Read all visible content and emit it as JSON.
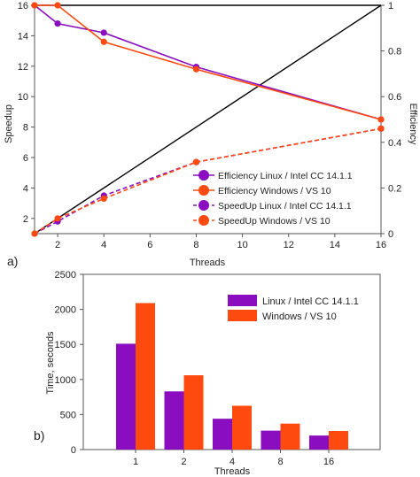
{
  "panel_a": {
    "label": "a)",
    "xlabel": "Threads",
    "ylabel_left": "Speedup",
    "ylabel_right": "Efficiency",
    "legend": [
      "Efficiency Linux / Intel CC 14.1.1",
      "Efficiency Windows / VS 10",
      "SpeedUp Linux / Intel CC 14.1.1",
      "SpeedUp Windows / VS 10"
    ]
  },
  "panel_b": {
    "label": "b)",
    "xlabel": "Threads",
    "ylabel": "Time, seconds",
    "legend": [
      "Linux / Intel CC 14.1.1",
      "Windows / VS 10"
    ]
  },
  "colors": {
    "linux": "#8a0dbf",
    "windows": "#ff4a0f",
    "ideal": "#000000"
  },
  "chart_data": [
    {
      "type": "line",
      "xlabel": "Threads",
      "ylabel": "Speedup",
      "ylabel_right": "Efficiency",
      "xlim": [
        1,
        16
      ],
      "ylim": [
        1,
        16
      ],
      "y2lim": [
        0,
        1.0
      ],
      "xticks": [
        2,
        4,
        6,
        8,
        10,
        12,
        14,
        16
      ],
      "yticks": [
        2,
        4,
        6,
        8,
        10,
        12,
        14,
        16
      ],
      "y2ticks": [
        0,
        0.2,
        0.4,
        0.6,
        0.8,
        1
      ],
      "grid": false,
      "legend_position": "lower-right",
      "series": [
        {
          "name": "Efficiency Linux / Intel CC 14.1.1",
          "axis": "right",
          "style": "solid",
          "x": [
            1,
            2,
            4,
            8,
            16
          ],
          "y": [
            1.0,
            0.92,
            0.88,
            0.73,
            0.5
          ]
        },
        {
          "name": "Efficiency Windows / VS 10",
          "axis": "right",
          "style": "solid",
          "x": [
            1,
            2,
            4,
            8,
            16
          ],
          "y": [
            1.0,
            1.0,
            0.84,
            0.72,
            0.5
          ]
        },
        {
          "name": "SpeedUp Linux / Intel CC 14.1.1",
          "axis": "left",
          "style": "dashed",
          "x": [
            1,
            2,
            4,
            8,
            16
          ],
          "y": [
            1.0,
            1.8,
            3.5,
            5.7,
            7.9
          ]
        },
        {
          "name": "SpeedUp Windows / VS 10",
          "axis": "left",
          "style": "dashed",
          "x": [
            1,
            2,
            4,
            8,
            16
          ],
          "y": [
            1.0,
            2.0,
            3.3,
            5.7,
            7.9
          ]
        }
      ],
      "reference_lines": [
        {
          "axis": "left",
          "x": [
            1,
            16
          ],
          "y": [
            1,
            16
          ]
        },
        {
          "axis": "right",
          "x": [
            1,
            16
          ],
          "y": [
            1.0,
            1.0
          ]
        }
      ]
    },
    {
      "type": "bar",
      "xlabel": "Threads",
      "ylabel": "Time, seconds",
      "categories": [
        "1",
        "2",
        "4",
        "8",
        "16"
      ],
      "ylim": [
        0,
        2500
      ],
      "yticks": [
        0,
        500,
        1000,
        1500,
        2000,
        2500
      ],
      "grid": false,
      "legend_position": "top-right",
      "series": [
        {
          "name": "Linux / Intel CC 14.1.1",
          "values": [
            1510,
            830,
            440,
            270,
            200
          ]
        },
        {
          "name": "Windows / VS 10",
          "values": [
            2090,
            1060,
            625,
            370,
            265
          ]
        }
      ]
    }
  ]
}
